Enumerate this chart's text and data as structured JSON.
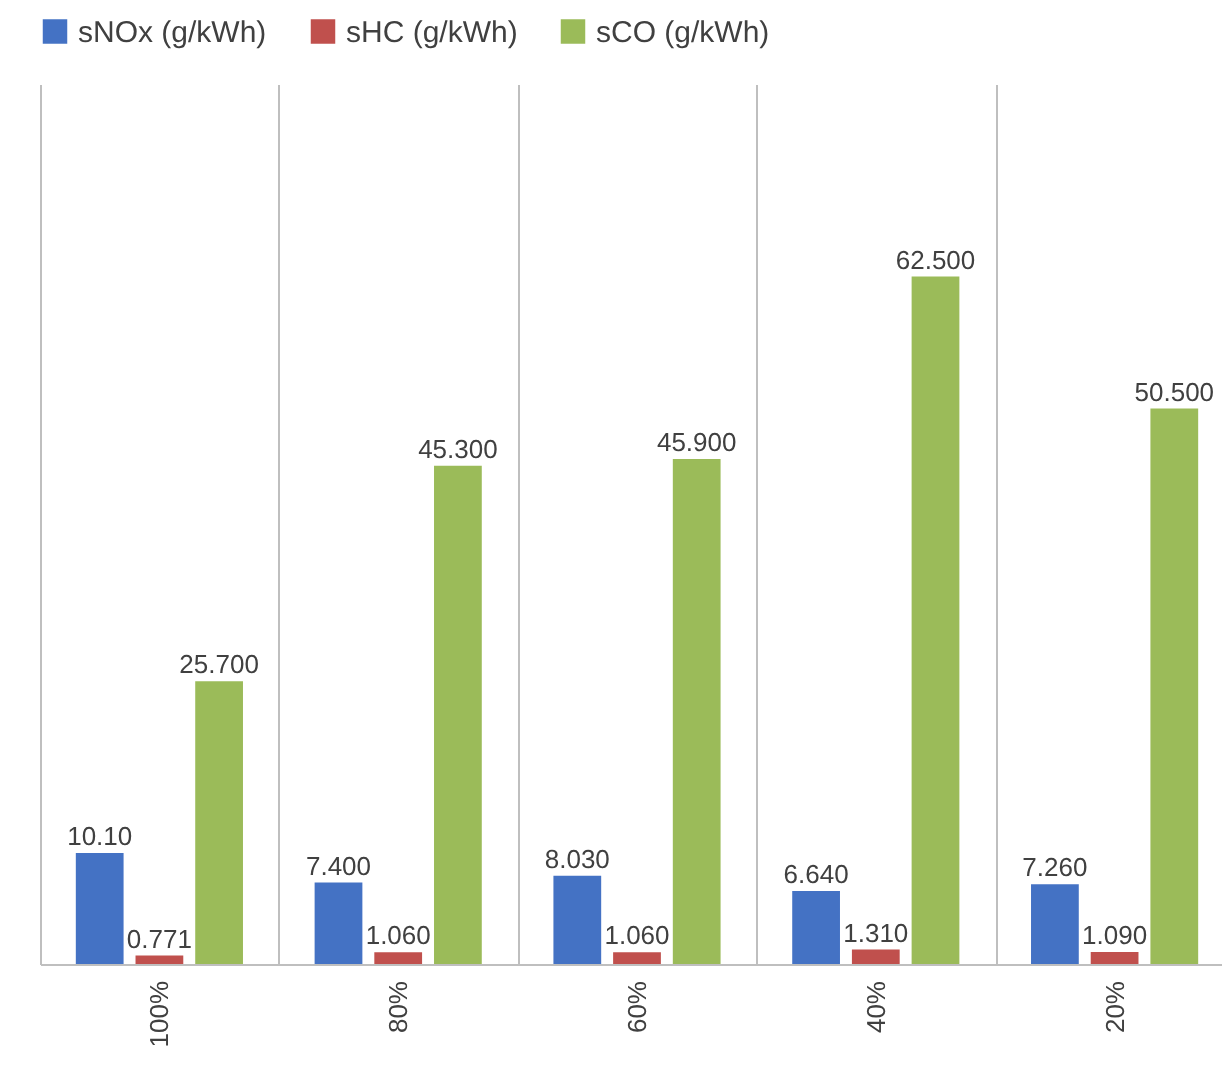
{
  "chart_data": {
    "type": "bar",
    "categories": [
      "100%",
      "80%",
      "60%",
      "40%",
      "20%"
    ],
    "series": [
      {
        "name": "sNOx (g/kWh)",
        "color": "#4472c4",
        "values": [
          10.1,
          7.4,
          8.03,
          6.64,
          7.26
        ],
        "value_labels": [
          "10.10",
          "7.400",
          "8.030",
          "6.640",
          "7.260"
        ]
      },
      {
        "name": "sHC (g/kWh)",
        "color": "#c0504d",
        "values": [
          0.771,
          1.06,
          1.06,
          1.31,
          1.09
        ],
        "value_labels": [
          "0.771",
          "1.060",
          "1.060",
          "1.310",
          "1.090"
        ]
      },
      {
        "name": "sCO (g/kWh)",
        "color": "#9bbb59",
        "values": [
          25.7,
          45.3,
          45.9,
          62.5,
          50.5
        ],
        "value_labels": [
          "25.700",
          "45.300",
          "45.900",
          "62.500",
          "50.500"
        ]
      }
    ],
    "ylim": [
      0,
      80
    ],
    "grid": "x",
    "legend": "top"
  }
}
